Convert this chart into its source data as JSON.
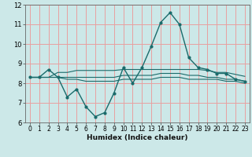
{
  "title": "",
  "xlabel": "Humidex (Indice chaleur)",
  "bg_color": "#cce8e8",
  "grid_color": "#e8a0a0",
  "line_color": "#1a6b6b",
  "xlim": [
    -0.5,
    23.5
  ],
  "ylim": [
    6,
    12
  ],
  "xticks": [
    0,
    1,
    2,
    3,
    4,
    5,
    6,
    7,
    8,
    9,
    10,
    11,
    12,
    13,
    14,
    15,
    16,
    17,
    18,
    19,
    20,
    21,
    22,
    23
  ],
  "yticks": [
    6,
    7,
    8,
    9,
    10,
    11,
    12
  ],
  "main_curve": [
    8.3,
    8.3,
    8.7,
    8.3,
    7.3,
    7.7,
    6.8,
    6.3,
    6.5,
    7.5,
    8.8,
    8.0,
    8.8,
    9.9,
    11.1,
    11.6,
    11.0,
    9.3,
    8.8,
    8.7,
    8.5,
    8.5,
    8.2,
    8.1
  ],
  "line1": [
    8.3,
    8.3,
    8.3,
    8.55,
    8.55,
    8.65,
    8.65,
    8.65,
    8.65,
    8.65,
    8.7,
    8.7,
    8.7,
    8.7,
    8.7,
    8.7,
    8.7,
    8.7,
    8.7,
    8.65,
    8.55,
    8.55,
    8.45,
    8.35
  ],
  "line2": [
    8.3,
    8.3,
    8.3,
    8.3,
    8.3,
    8.3,
    8.3,
    8.3,
    8.3,
    8.3,
    8.4,
    8.4,
    8.4,
    8.4,
    8.5,
    8.5,
    8.5,
    8.4,
    8.4,
    8.3,
    8.3,
    8.2,
    8.2,
    8.1
  ],
  "line3": [
    8.3,
    8.3,
    8.3,
    8.3,
    8.2,
    8.2,
    8.1,
    8.1,
    8.1,
    8.1,
    8.2,
    8.2,
    8.2,
    8.2,
    8.3,
    8.3,
    8.3,
    8.2,
    8.2,
    8.2,
    8.2,
    8.1,
    8.1,
    8.0
  ],
  "tick_fontsize": 5.5,
  "xlabel_fontsize": 6.5,
  "marker_size": 2.0
}
